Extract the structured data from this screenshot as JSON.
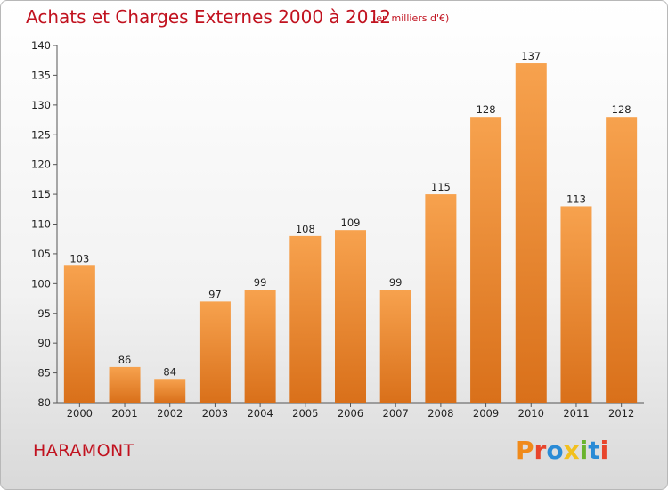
{
  "header": {
    "title": "Achats et Charges Externes 2000 à 2012",
    "subtitle": "(en milliers d'€)"
  },
  "footer": {
    "town": "HARAMONT",
    "logo_text": "Proxiti",
    "logo_colors": [
      "#f08a1a",
      "#e8452c",
      "#2a8bd6",
      "#f2c01e",
      "#6ab42d",
      "#2a8bd6",
      "#e8452c"
    ]
  },
  "chart_data": {
    "type": "bar",
    "categories": [
      "2000",
      "2001",
      "2002",
      "2003",
      "2004",
      "2005",
      "2006",
      "2007",
      "2008",
      "2009",
      "2010",
      "2011",
      "2012"
    ],
    "values": [
      103,
      86,
      84,
      97,
      99,
      108,
      109,
      99,
      115,
      128,
      137,
      113,
      128
    ],
    "title": "Achats et Charges Externes 2000 à 2012",
    "ylim": [
      80,
      140
    ],
    "yticks": [
      80,
      85,
      90,
      95,
      100,
      105,
      110,
      115,
      120,
      125,
      130,
      135,
      140
    ],
    "grid": false,
    "bar_color_top": "#f7a24e",
    "bar_color_bottom": "#d9701a"
  }
}
